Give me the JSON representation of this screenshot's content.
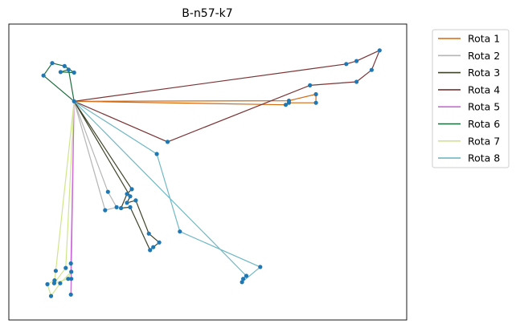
{
  "chart_data": {
    "type": "line",
    "title": "B-n57-k7",
    "xlabel": "",
    "ylabel": "",
    "axes_visible": false,
    "grid": false,
    "legend_position": "outside-upper-right",
    "xlim": [
      0,
      100
    ],
    "ylim": [
      0,
      100
    ],
    "node_color": "#1f77b4",
    "depot": [
      16.4,
      73.9
    ],
    "series": [
      {
        "name": "Rota 1",
        "color": "#d4690f",
        "points": [
          [
            16.4,
            73.9
          ],
          [
            70.4,
            74.1
          ],
          [
            77.2,
            76.3
          ],
          [
            77.2,
            73.4
          ],
          [
            70.4,
            73.4
          ],
          [
            69.6,
            72.7
          ],
          [
            16.4,
            73.9
          ]
        ]
      },
      {
        "name": "Rota 2",
        "color": "#b5b5b5",
        "points": [
          [
            16.4,
            73.9
          ],
          [
            24.9,
            43.3
          ],
          [
            27.1,
            38.1
          ],
          [
            24.2,
            37.1
          ],
          [
            16.4,
            73.9
          ]
        ]
      },
      {
        "name": "Rota 3",
        "color": "#3c4327",
        "points": [
          [
            16.4,
            73.9
          ],
          [
            30.5,
            41.8
          ],
          [
            29.7,
            39.6
          ],
          [
            31.9,
            40.4
          ],
          [
            35.2,
            29.2
          ],
          [
            37.8,
            26.2
          ],
          [
            36.3,
            24.6
          ],
          [
            35.5,
            23.6
          ],
          [
            30.5,
            38.1
          ],
          [
            28.2,
            37.8
          ],
          [
            29.7,
            42.6
          ],
          [
            30.9,
            44.2
          ],
          [
            16.4,
            73.9
          ]
        ]
      },
      {
        "name": "Rota 4",
        "color": "#7b3334",
        "points": [
          [
            16.4,
            73.9
          ],
          [
            39.9,
            60.2
          ],
          [
            75.7,
            79.3
          ],
          [
            87.4,
            80.5
          ],
          [
            91.2,
            84.5
          ],
          [
            93.2,
            91.1
          ],
          [
            87.4,
            87.5
          ],
          [
            84.8,
            86.5
          ],
          [
            16.4,
            73.9
          ]
        ]
      },
      {
        "name": "Rota 5",
        "color": "#cc6ad7",
        "points": [
          [
            16.4,
            73.9
          ],
          [
            15.6,
            19.1
          ],
          [
            15.7,
            13.9
          ],
          [
            15.6,
            8.6
          ],
          [
            16.4,
            73.9
          ]
        ]
      },
      {
        "name": "Rota 6",
        "color": "#196b3b",
        "points": [
          [
            16.4,
            73.9
          ],
          [
            8.7,
            82.6
          ],
          [
            10.9,
            86.8
          ],
          [
            14.0,
            85.8
          ],
          [
            16.4,
            83.6
          ],
          [
            13.0,
            83.8
          ],
          [
            15.0,
            84.6
          ],
          [
            16.4,
            73.9
          ]
        ]
      },
      {
        "name": "Rota 7",
        "color": "#cfe58b",
        "points": [
          [
            16.4,
            73.9
          ],
          [
            14.3,
            17.6
          ],
          [
            11.4,
            12.4
          ],
          [
            14.9,
            13.9
          ],
          [
            15.7,
            16.3
          ],
          [
            12.9,
            12.4
          ],
          [
            10.6,
            8.1
          ],
          [
            9.7,
            12.1
          ],
          [
            11.5,
            13.4
          ],
          [
            11.8,
            16.6
          ],
          [
            16.4,
            73.9
          ]
        ]
      },
      {
        "name": "Rota 8",
        "color": "#6fb8c4",
        "points": [
          [
            16.4,
            73.9
          ],
          [
            37.2,
            56.1
          ],
          [
            43.0,
            29.9
          ],
          [
            63.2,
            17.9
          ],
          [
            58.6,
            12.8
          ],
          [
            58.9,
            13.9
          ],
          [
            59.7,
            14.9
          ],
          [
            16.4,
            73.9
          ]
        ]
      }
    ]
  }
}
